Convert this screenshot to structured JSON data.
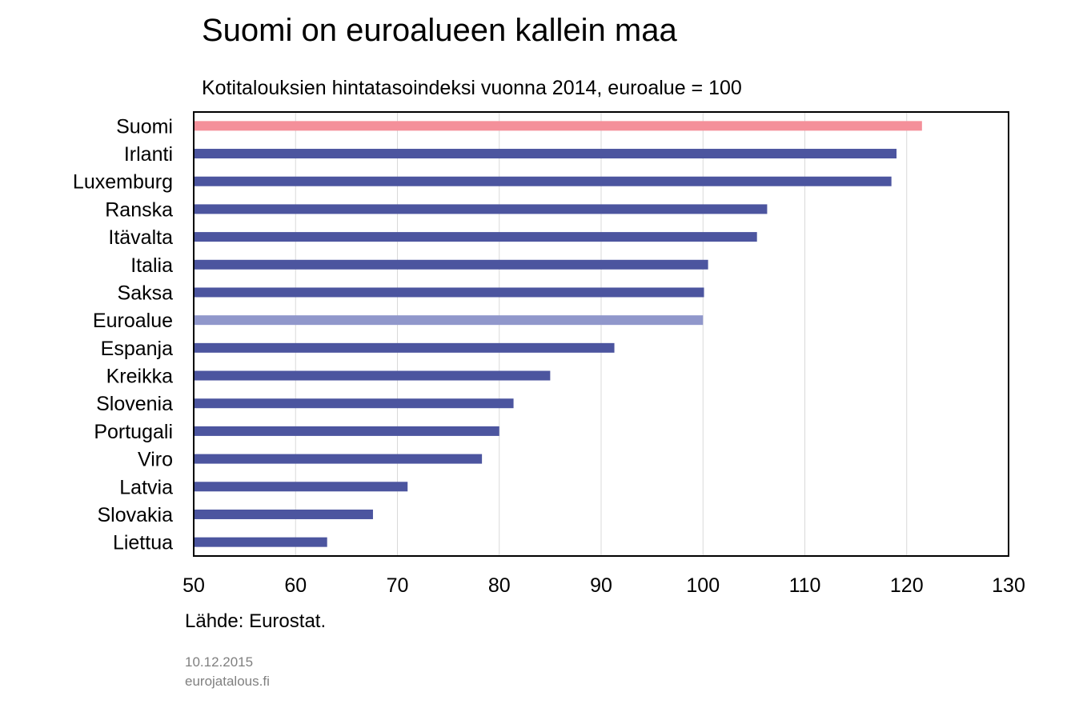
{
  "title": "Suomi on euroalueen kallein maa",
  "subtitle": "Kotitalouksien hintatasoindeksi vuonna 2014, euroalue = 100",
  "source": "Lähde: Eurostat.",
  "date": "10.12.2015",
  "site": "eurojatalous.fi",
  "colors": {
    "default_bar": "#4c559f",
    "highlight_bar": "#f4909a",
    "reference_bar": "#9097cb",
    "grid": "#d9d9d9",
    "frame": "#000000"
  },
  "chart_data": {
    "type": "bar",
    "orientation": "horizontal",
    "categories": [
      "Suomi",
      "Irlanti",
      "Luxemburg",
      "Ranska",
      "Itävalta",
      "Italia",
      "Saksa",
      "Euroalue",
      "Espanja",
      "Kreikka",
      "Slovenia",
      "Portugali",
      "Viro",
      "Latvia",
      "Slovakia",
      "Liettua"
    ],
    "values": [
      121.5,
      119.0,
      118.5,
      106.3,
      105.3,
      100.5,
      100.1,
      100.0,
      91.3,
      85.0,
      81.4,
      80.0,
      78.3,
      71.0,
      67.6,
      63.1
    ],
    "bar_colors": [
      "highlight",
      "default",
      "default",
      "default",
      "default",
      "default",
      "default",
      "reference",
      "default",
      "default",
      "default",
      "default",
      "default",
      "default",
      "default",
      "default"
    ],
    "xlim": [
      50,
      130
    ],
    "xticks": [
      50,
      60,
      70,
      80,
      90,
      100,
      110,
      120,
      130
    ],
    "xlabel": "",
    "ylabel": "",
    "grid": "vertical",
    "legend": "none"
  }
}
